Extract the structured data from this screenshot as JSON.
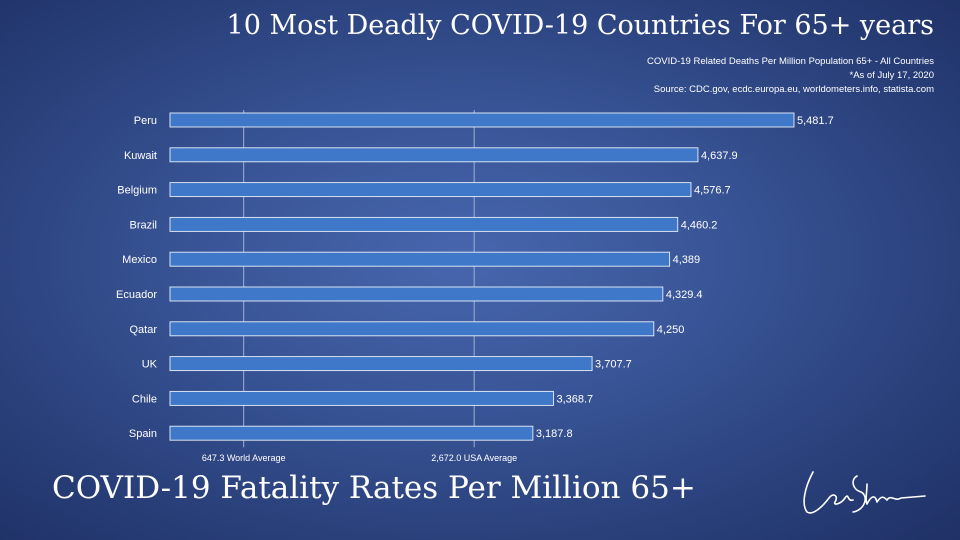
{
  "header": {
    "title": "10 Most Deadly COVID-19 Countries For 65+ years",
    "subtitle": "COVID-19 Related Deaths Per Million Population 65+ - All Countries",
    "note": "*As of July 17, 2020",
    "source": "Source: CDC.gov, ecdc.europa.eu, worldometers.info, statista.com"
  },
  "footer": {
    "title": "COVID-19 Fatality Rates Per Million 65+"
  },
  "chart_data": {
    "type": "bar",
    "orientation": "horizontal",
    "categories": [
      "Peru",
      "Kuwait",
      "Belgium",
      "Brazil",
      "Mexico",
      "Ecuador",
      "Qatar",
      "UK",
      "Chile",
      "Spain"
    ],
    "values": [
      5481.7,
      4637.9,
      4576.7,
      4460.2,
      4389,
      4329.4,
      4250,
      3707.7,
      3368.7,
      3187.8
    ],
    "value_labels": [
      "5,481.7",
      "4,637.9",
      "4,576.7",
      "4,460.2",
      "4,389",
      "4,329.4",
      "4,250",
      "3,707.7",
      "3,368.7",
      "3,187.8"
    ],
    "reference_lines": [
      {
        "value": 647.3,
        "label": "647.3 World Average"
      },
      {
        "value": 2672.0,
        "label": "2,672.0 USA Average"
      }
    ],
    "xlim": [
      0,
      5481.7
    ],
    "grid": false,
    "colors": {
      "bar": "#3f78c8",
      "bar_border": "#e8eef8",
      "reference_line": "#9fb0d6"
    }
  }
}
